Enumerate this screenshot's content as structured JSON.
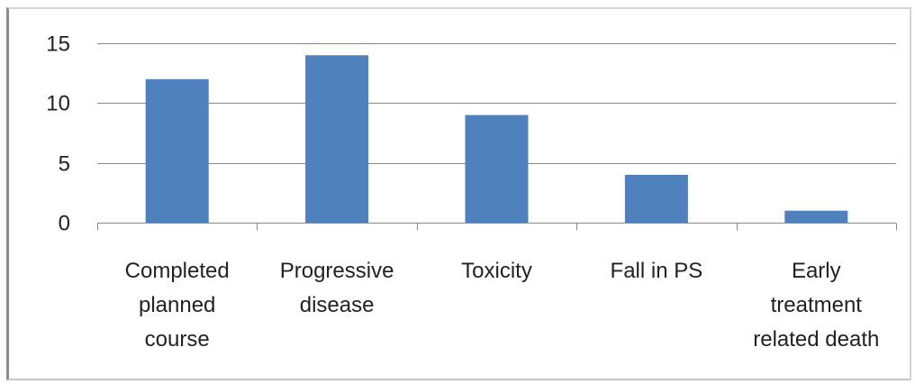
{
  "chart_data": {
    "type": "bar",
    "categories": [
      [
        "Completed",
        "planned",
        "course"
      ],
      [
        "Progressive",
        "disease"
      ],
      [
        "Toxicity"
      ],
      [
        "Fall in PS"
      ],
      [
        "Early",
        "treatment",
        "related death"
      ]
    ],
    "values": [
      12,
      14,
      9,
      4,
      1
    ],
    "ylim": [
      0,
      15
    ],
    "yticks": [
      "0",
      "5",
      "10",
      "15"
    ],
    "ytick_values": [
      0,
      5,
      10,
      15
    ],
    "grid": true,
    "legend": "none",
    "title": "",
    "xlabel": "",
    "ylabel": "",
    "bar_color": "#4f81bd",
    "grid_color": "#898989"
  }
}
